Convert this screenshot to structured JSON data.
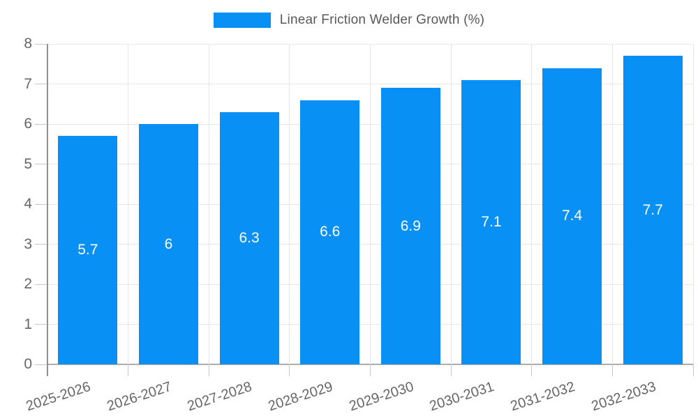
{
  "chart_data": {
    "type": "bar",
    "title": "",
    "legend": {
      "label": "Linear Friction Welder Growth (%)",
      "position": "top-center"
    },
    "categories": [
      "2025-2026",
      "2026-2027",
      "2027-2028",
      "2028-2029",
      "2029-2030",
      "2030-2031",
      "2031-2032",
      "2032-2033"
    ],
    "series": [
      {
        "name": "Linear Friction Welder Growth (%)",
        "values": [
          5.7,
          6.0,
          6.3,
          6.6,
          6.9,
          7.1,
          7.4,
          7.7
        ],
        "value_labels": [
          "5.7",
          "6",
          "6.3",
          "6.6",
          "6.9",
          "7.1",
          "7.4",
          "7.7"
        ]
      }
    ],
    "xlabel": "",
    "ylabel": "",
    "ylim": [
      0,
      8
    ],
    "yticks": [
      0,
      1,
      2,
      3,
      4,
      5,
      6,
      7,
      8
    ],
    "grid": true,
    "colors": {
      "bar": "#0890f5",
      "value_label_text": "#ffffff",
      "axis_text": "#666666",
      "legend_text": "#58585a",
      "gridline": "#e6e6e6",
      "axis_line": "#909090",
      "baseline": "#adadad",
      "tick": "#c7c7c7",
      "background": "#ffffff"
    }
  }
}
